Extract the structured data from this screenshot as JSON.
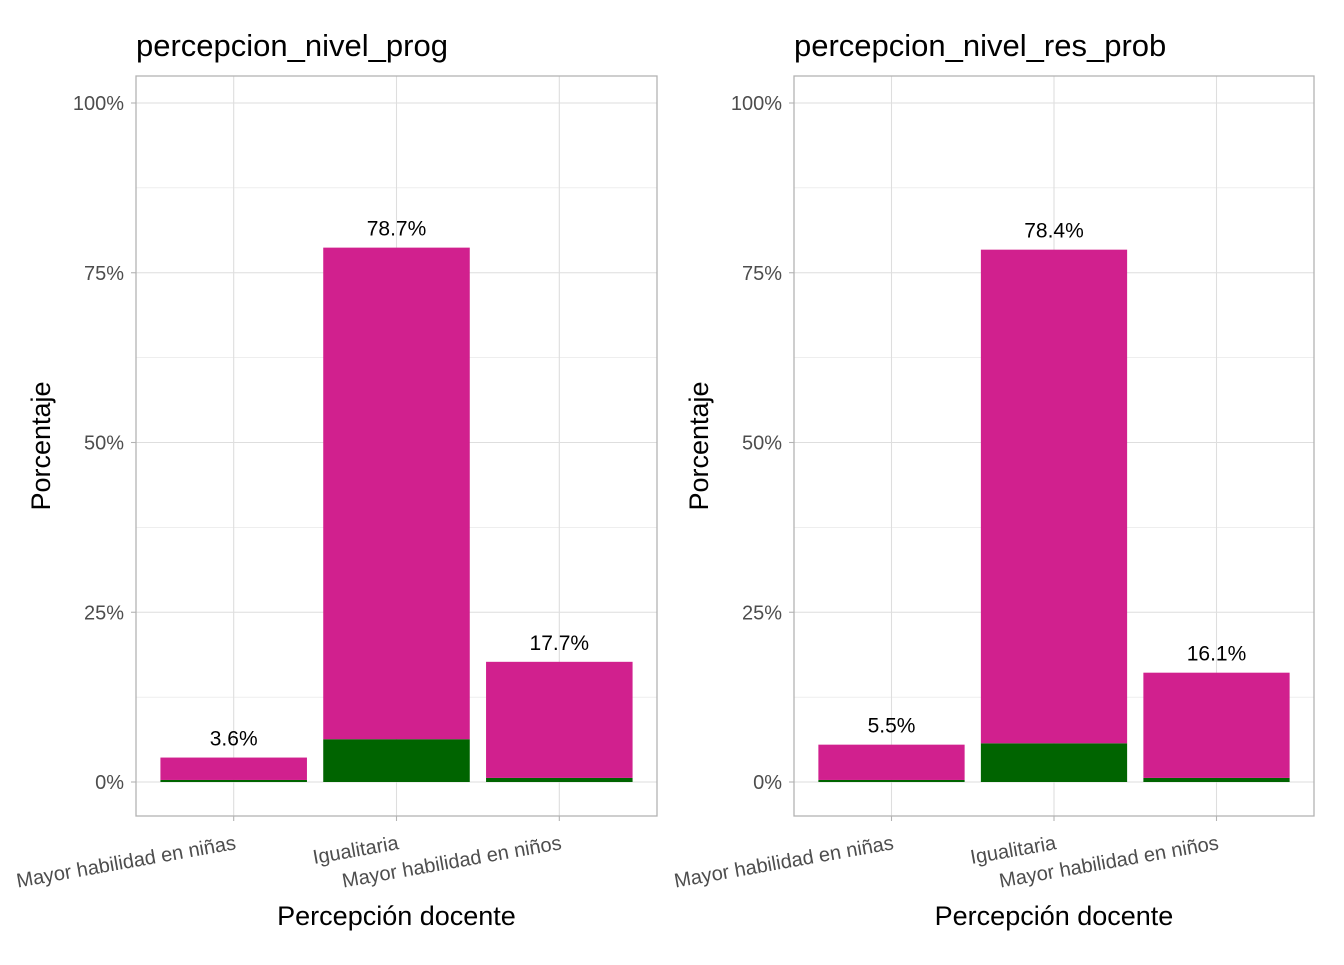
{
  "colors": {
    "magenta": "#D1208E",
    "green": "#006400",
    "grid": "#DEDEDE",
    "border": "#B3B3B3",
    "axis_text": "#4D4D4D"
  },
  "chart_data": [
    {
      "type": "bar",
      "stacked": true,
      "title": "percepcion_nivel_prog",
      "xlabel": "Percepción docente",
      "ylabel": "Porcentaje",
      "ylim": [
        0,
        100
      ],
      "yticks": [
        "0%",
        "25%",
        "50%",
        "75%",
        "100%"
      ],
      "categories": [
        "Mayor habilidad en niñas",
        "Igualitaria",
        "Mayor habilidad en niños"
      ],
      "totals": [
        3.6,
        78.7,
        17.7
      ],
      "data_labels": [
        "3.6%",
        "78.7%",
        "17.7%"
      ],
      "series": [
        {
          "name": "green",
          "values": [
            0.3,
            6.3,
            0.6
          ]
        },
        {
          "name": "magenta",
          "values": [
            3.3,
            72.4,
            17.1
          ]
        }
      ]
    },
    {
      "type": "bar",
      "stacked": true,
      "title": "percepcion_nivel_res_prob",
      "xlabel": "Percepción docente",
      "ylabel": "Porcentaje",
      "ylim": [
        0,
        100
      ],
      "yticks": [
        "0%",
        "25%",
        "50%",
        "75%",
        "100%"
      ],
      "categories": [
        "Mayor habilidad en niñas",
        "Igualitaria",
        "Mayor habilidad en niños"
      ],
      "totals": [
        5.5,
        78.4,
        16.1
      ],
      "data_labels": [
        "5.5%",
        "78.4%",
        "16.1%"
      ],
      "series": [
        {
          "name": "green",
          "values": [
            0.3,
            5.7,
            0.6
          ]
        },
        {
          "name": "magenta",
          "values": [
            5.2,
            72.7,
            15.5
          ]
        }
      ]
    }
  ]
}
